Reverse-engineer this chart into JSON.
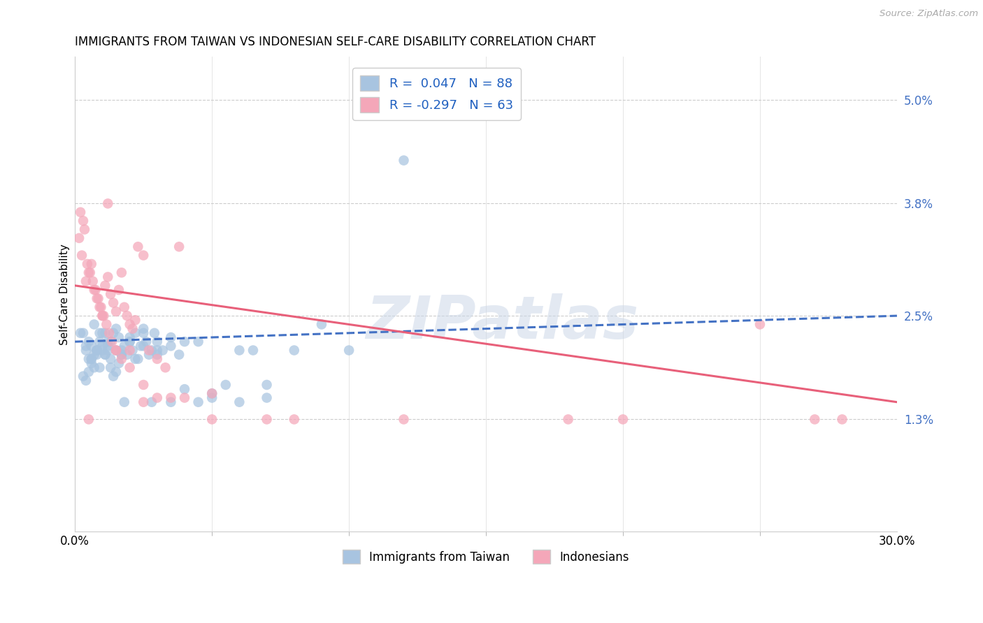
{
  "title": "IMMIGRANTS FROM TAIWAN VS INDONESIAN SELF-CARE DISABILITY CORRELATION CHART",
  "source": "Source: ZipAtlas.com",
  "ylabel": "Self-Care Disability",
  "ytick_labels": [
    "5.0%",
    "3.8%",
    "2.5%",
    "1.3%"
  ],
  "ytick_vals": [
    5.0,
    3.8,
    2.5,
    1.3
  ],
  "xmin": 0.0,
  "xmax": 30.0,
  "ymin": 0.0,
  "ymax": 5.5,
  "legend_r_taiwan": "0.047",
  "legend_n_taiwan": "88",
  "legend_r_indonesian": "-0.297",
  "legend_n_indonesian": "63",
  "color_taiwan": "#a8c4e0",
  "color_indonesian": "#f4a7b9",
  "line_color_taiwan": "#4472c4",
  "line_color_indonesian": "#e8607a",
  "watermark": "ZIPatlas",
  "tw_line_x0": 0.0,
  "tw_line_y0": 2.2,
  "tw_line_x1": 30.0,
  "tw_line_y1": 2.5,
  "ind_line_x0": 0.0,
  "ind_line_y0": 2.85,
  "ind_line_x1": 30.0,
  "ind_line_y1": 1.5,
  "taiwan_x": [
    0.5,
    0.6,
    0.7,
    0.8,
    0.9,
    1.0,
    1.1,
    1.2,
    1.3,
    1.4,
    1.5,
    1.6,
    1.7,
    1.8,
    1.9,
    2.0,
    2.1,
    2.2,
    2.3,
    2.4,
    2.5,
    2.6,
    2.7,
    2.8,
    2.9,
    3.0,
    3.2,
    3.5,
    3.8,
    4.0,
    0.3,
    0.4,
    0.5,
    0.6,
    0.7,
    0.8,
    0.9,
    1.0,
    1.1,
    1.2,
    1.3,
    1.4,
    1.5,
    1.6,
    1.7,
    2.0,
    2.5,
    3.0,
    3.5,
    4.5,
    5.0,
    6.0,
    7.0,
    8.0,
    9.0,
    5.5,
    6.5,
    0.2,
    0.3,
    0.4,
    0.5,
    0.6,
    0.7,
    0.8,
    1.0,
    1.2,
    1.5,
    2.0,
    2.5,
    3.0,
    5.0,
    7.0,
    10.0,
    12.0,
    4.0,
    6.0,
    3.5,
    4.5,
    2.8,
    1.8,
    0.9,
    1.1,
    0.6,
    0.4,
    2.2,
    1.7,
    1.3,
    0.8
  ],
  "taiwan_y": [
    2.2,
    2.0,
    2.4,
    2.1,
    2.3,
    2.15,
    2.05,
    2.1,
    2.2,
    2.3,
    2.35,
    2.25,
    2.1,
    2.15,
    2.05,
    2.2,
    2.1,
    2.3,
    2.0,
    2.15,
    2.35,
    2.2,
    2.05,
    2.1,
    2.3,
    2.2,
    2.1,
    2.15,
    2.05,
    2.2,
    2.3,
    2.1,
    2.0,
    2.15,
    1.9,
    2.05,
    2.2,
    2.1,
    2.3,
    2.15,
    2.0,
    1.8,
    1.85,
    1.95,
    2.05,
    2.2,
    2.3,
    2.1,
    2.25,
    2.2,
    1.6,
    2.1,
    1.55,
    2.1,
    2.4,
    1.7,
    2.1,
    2.3,
    1.8,
    1.75,
    1.85,
    1.95,
    2.05,
    2.1,
    2.3,
    2.2,
    2.1,
    2.25,
    2.15,
    2.05,
    1.55,
    1.7,
    2.1,
    4.3,
    1.65,
    1.5,
    1.5,
    1.5,
    1.5,
    1.5,
    1.9,
    2.05,
    2.0,
    2.15,
    2.0,
    2.05,
    1.9,
    2.1
  ],
  "indonesian_x": [
    0.3,
    0.5,
    0.7,
    0.9,
    1.0,
    1.1,
    1.2,
    1.3,
    1.4,
    1.5,
    1.6,
    1.7,
    1.8,
    1.9,
    2.0,
    2.1,
    2.2,
    2.3,
    2.5,
    2.7,
    3.0,
    3.3,
    3.8,
    5.0,
    0.15,
    0.25,
    0.35,
    0.45,
    0.55,
    0.65,
    0.75,
    0.85,
    0.95,
    1.05,
    1.15,
    1.25,
    1.35,
    1.5,
    1.7,
    2.0,
    2.5,
    3.5,
    8.0,
    18.0,
    25.0,
    28.0,
    0.4,
    0.6,
    0.8,
    1.0,
    1.5,
    2.0,
    2.5,
    3.0,
    4.0,
    5.0,
    7.0,
    12.0,
    20.0,
    27.0,
    0.2,
    0.5,
    1.2
  ],
  "indonesian_y": [
    3.6,
    3.0,
    2.8,
    2.6,
    2.5,
    2.85,
    2.95,
    2.75,
    2.65,
    2.55,
    2.8,
    3.0,
    2.6,
    2.5,
    2.4,
    2.35,
    2.45,
    3.3,
    3.2,
    2.1,
    2.0,
    1.9,
    3.3,
    1.6,
    3.4,
    3.2,
    3.5,
    3.1,
    3.0,
    2.9,
    2.8,
    2.7,
    2.6,
    2.5,
    2.4,
    2.3,
    2.2,
    2.1,
    2.0,
    1.9,
    1.7,
    1.55,
    1.3,
    1.3,
    2.4,
    1.3,
    2.9,
    3.1,
    2.7,
    2.5,
    2.1,
    2.1,
    1.5,
    1.55,
    1.55,
    1.3,
    1.3,
    1.3,
    1.3,
    1.3,
    3.7,
    1.3,
    3.8
  ]
}
